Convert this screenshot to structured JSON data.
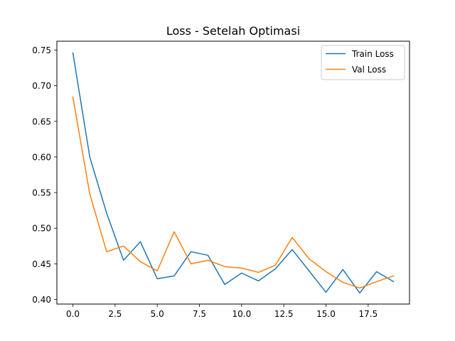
{
  "chart_data": {
    "type": "line",
    "title": "Loss - Setelah Optimasi",
    "xlabel": "",
    "ylabel": "",
    "xlim": [
      -0.95,
      19.95
    ],
    "ylim": [
      0.3935,
      0.7625
    ],
    "xticks": [
      0,
      2.5,
      5,
      7.5,
      10,
      12.5,
      15,
      17.5
    ],
    "xtick_labels": [
      "0.0",
      "2.5",
      "5.0",
      "7.5",
      "10.0",
      "12.5",
      "15.0",
      "17.5"
    ],
    "yticks": [
      0.4,
      0.45,
      0.5,
      0.55,
      0.6,
      0.65,
      0.7,
      0.75
    ],
    "ytick_labels": [
      "0.40",
      "0.45",
      "0.50",
      "0.55",
      "0.60",
      "0.65",
      "0.70",
      "0.75"
    ],
    "grid": false,
    "legend_position": "top-right",
    "x": [
      0,
      1,
      2,
      3,
      4,
      5,
      6,
      7,
      8,
      9,
      10,
      11,
      12,
      13,
      14,
      15,
      16,
      17,
      18,
      19
    ],
    "series": [
      {
        "name": "Train Loss",
        "color": "#1f77b4",
        "values": [
          0.746,
          0.6,
          0.521,
          0.455,
          0.481,
          0.429,
          0.433,
          0.467,
          0.462,
          0.421,
          0.437,
          0.426,
          0.443,
          0.47,
          0.44,
          0.41,
          0.442,
          0.409,
          0.439,
          0.425
        ]
      },
      {
        "name": "Val Loss",
        "color": "#ff7f0e",
        "values": [
          0.684,
          0.548,
          0.467,
          0.475,
          0.453,
          0.44,
          0.495,
          0.45,
          0.455,
          0.446,
          0.444,
          0.438,
          0.448,
          0.487,
          0.457,
          0.439,
          0.424,
          0.416,
          0.425,
          0.433
        ]
      }
    ]
  }
}
